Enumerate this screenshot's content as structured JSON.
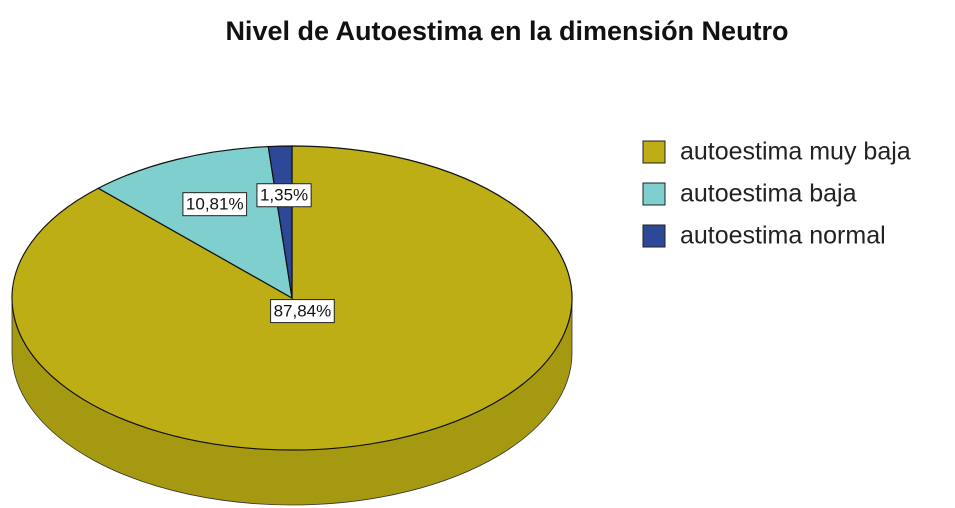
{
  "chart_data": {
    "type": "pie",
    "title": "Nivel de Autoestima en la dimensión Neutro",
    "categories": [
      "autoestima muy baja",
      "autoestima baja",
      "autoestima normal"
    ],
    "values": [
      87.84,
      10.81,
      1.35
    ],
    "value_labels": [
      "87,84%",
      "10,81%",
      "1,35%"
    ],
    "colors": [
      "#bcae14",
      "#7ecfcd",
      "#2d4897"
    ],
    "legend": "right"
  }
}
